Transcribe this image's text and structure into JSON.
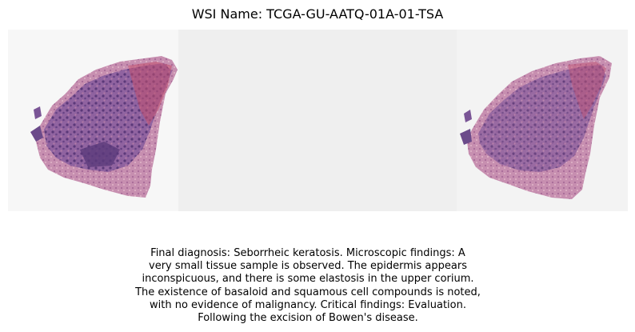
{
  "header": {
    "title": "WSI Name: TCGA-GU-AATQ-01A-01-TSA"
  },
  "slide": {
    "left_view_icon": "wsi-thumbnail-full",
    "right_view_icon": "wsi-thumbnail-tissue",
    "tissue_color": "#6b4a8a",
    "stroma_color": "#c98aa8",
    "background_color": "#efefef"
  },
  "report": {
    "lines": [
      "Final diagnosis: Seborrheic keratosis. Microscopic findings: A",
      "very small tissue sample is observed. The epidermis appears",
      "inconspicuous, and there is some elastosis in the upper corium.",
      "The existence of basaloid and squamous cell compounds is noted,",
      "with no evidence of malignancy. Critical findings: Evaluation.",
      "Following the excision of Bowen's disease."
    ]
  }
}
